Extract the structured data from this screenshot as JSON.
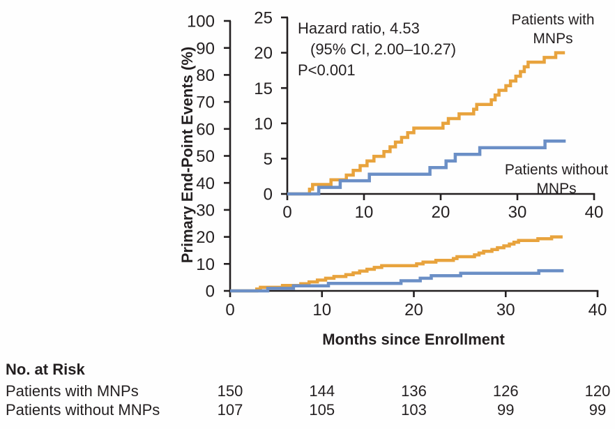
{
  "colors": {
    "with_mnps": "#E8A33D",
    "without_mnps": "#6B8FC6",
    "axis_and_text": "#231F20",
    "background": "#FFFFFF"
  },
  "y_axis_title": "Primary End-Point Events (%)",
  "x_axis_title": "Months since Enrollment",
  "annotation": {
    "line1": "Hazard ratio, 4.53",
    "line2": "(95% CI, 2.00–10.27)",
    "line3": "P<0.001"
  },
  "curve_labels": {
    "with_mnps": [
      "Patients with",
      "MNPs"
    ],
    "without_mnps": [
      "Patients without",
      "MNPs"
    ]
  },
  "risk_table": {
    "header": "No. at Risk",
    "rows": [
      {
        "label": "Patients with MNPs",
        "values": [
          "150",
          "144",
          "136",
          "126",
          "120"
        ]
      },
      {
        "label": "Patients without MNPs",
        "values": [
          "107",
          "105",
          "103",
          "99",
          "99"
        ]
      }
    ]
  },
  "chart_data": {
    "type": "line",
    "style": "kaplan-meier-step-cumulative-incidence",
    "title": "",
    "xlabel": "Months since Enrollment",
    "ylabel": "Primary End-Point Events (%)",
    "annotations": [
      "Hazard ratio, 4.53",
      "(95% CI, 2.00–10.27)",
      "P<0.001"
    ],
    "main_axes": {
      "xlim": [
        0,
        40
      ],
      "ylim": [
        0,
        100
      ],
      "xticks": [
        0,
        10,
        20,
        30,
        40
      ],
      "yticks": [
        0,
        10,
        20,
        30,
        40,
        50,
        60,
        70,
        80,
        90,
        100
      ],
      "grid": false
    },
    "inset_axes": {
      "xlim": [
        0,
        40
      ],
      "ylim": [
        0,
        25
      ],
      "xticks": [
        0,
        10,
        20,
        30,
        40
      ],
      "yticks": [
        0,
        5,
        10,
        15,
        20,
        25
      ],
      "grid": false
    },
    "series": [
      {
        "name": "Patients with MNPs",
        "color": "#E8A33D",
        "start": [
          0,
          0
        ],
        "follow_up_end": 36.2,
        "events": [
          [
            2.9,
            0.67
          ],
          [
            3.3,
            1.33
          ],
          [
            5.7,
            2.0
          ],
          [
            7.7,
            2.67
          ],
          [
            8.6,
            3.33
          ],
          [
            9.5,
            4.0
          ],
          [
            10.4,
            4.67
          ],
          [
            11.3,
            5.33
          ],
          [
            12.6,
            6.0
          ],
          [
            13.4,
            6.67
          ],
          [
            14.1,
            7.33
          ],
          [
            14.9,
            8.0
          ],
          [
            15.7,
            8.67
          ],
          [
            16.5,
            9.33
          ],
          [
            20.3,
            10.0
          ],
          [
            21.0,
            10.67
          ],
          [
            22.4,
            11.33
          ],
          [
            24.3,
            12.0
          ],
          [
            24.7,
            12.67
          ],
          [
            26.6,
            13.33
          ],
          [
            27.1,
            14.0
          ],
          [
            27.6,
            14.67
          ],
          [
            28.5,
            15.33
          ],
          [
            29.1,
            16.0
          ],
          [
            29.8,
            16.67
          ],
          [
            30.4,
            17.33
          ],
          [
            30.9,
            18.0
          ],
          [
            31.4,
            18.67
          ],
          [
            33.5,
            19.33
          ],
          [
            35.0,
            20.0
          ]
        ]
      },
      {
        "name": "Patients without MNPs",
        "color": "#6B8FC6",
        "start": [
          0,
          0
        ],
        "follow_up_end": 36.3,
        "events": [
          [
            4.1,
            0.93
          ],
          [
            6.9,
            1.87
          ],
          [
            10.7,
            2.8
          ],
          [
            18.6,
            3.74
          ],
          [
            20.7,
            4.67
          ],
          [
            21.9,
            5.61
          ],
          [
            25.1,
            6.54
          ],
          [
            33.6,
            7.48
          ]
        ]
      }
    ]
  }
}
